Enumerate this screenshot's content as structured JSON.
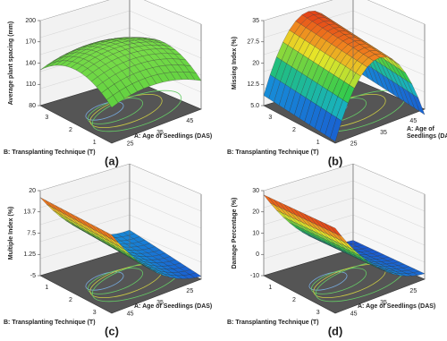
{
  "panels": [
    {
      "label": "(a)",
      "z_axis": {
        "title": "Average plant spacing (mm)",
        "ticks": [
          200,
          170,
          140,
          110,
          80
        ]
      },
      "b_axis": {
        "title_lines": [
          "B: Transplanting Technique (T)"
        ],
        "ticks": [
          3,
          2,
          1
        ]
      },
      "a_axis": {
        "title_lines": [
          "A: Age of Seedlings (DAS)"
        ],
        "ticks": [
          25,
          35,
          45
        ]
      }
    },
    {
      "label": "(b)",
      "z_axis": {
        "title": "Missing Index (%)",
        "ticks": [
          35,
          27.5,
          20,
          12.5,
          {
            "value": 5,
            "label": "5.0"
          }
        ]
      },
      "b_axis": {
        "title_lines": [
          "B: Transplanting Technique (T)"
        ],
        "ticks": [
          3,
          2,
          1
        ]
      },
      "a_axis": {
        "title_lines": [
          "A: Age of",
          "Seedlings (DAS)"
        ],
        "ticks": [
          25,
          35,
          45
        ]
      }
    },
    {
      "label": "(c)",
      "z_axis": {
        "title": "Multiple Index (%)",
        "ticks": [
          20,
          13.7,
          7.5,
          1.25,
          -5
        ]
      },
      "b_axis": {
        "title_lines": [
          "B: Transplanting Technique (T)"
        ],
        "ticks": [
          1,
          2,
          3
        ]
      },
      "a_axis": {
        "title_lines": [
          "A: Age of Seedlings (DAS)"
        ],
        "ticks": [
          45,
          35,
          25
        ]
      }
    },
    {
      "label": "(d)",
      "z_axis": {
        "title": "Damage Percentage (%)",
        "ticks": [
          30,
          20,
          10,
          0,
          -10
        ]
      },
      "b_axis": {
        "title_lines": [
          "B: Transplanting Technique (T)"
        ],
        "ticks": [
          1,
          2,
          3
        ]
      },
      "a_axis": {
        "title_lines": [
          "A: Age of Seedlings (DAS)"
        ],
        "ticks": [
          45,
          35,
          25
        ]
      }
    }
  ]
}
